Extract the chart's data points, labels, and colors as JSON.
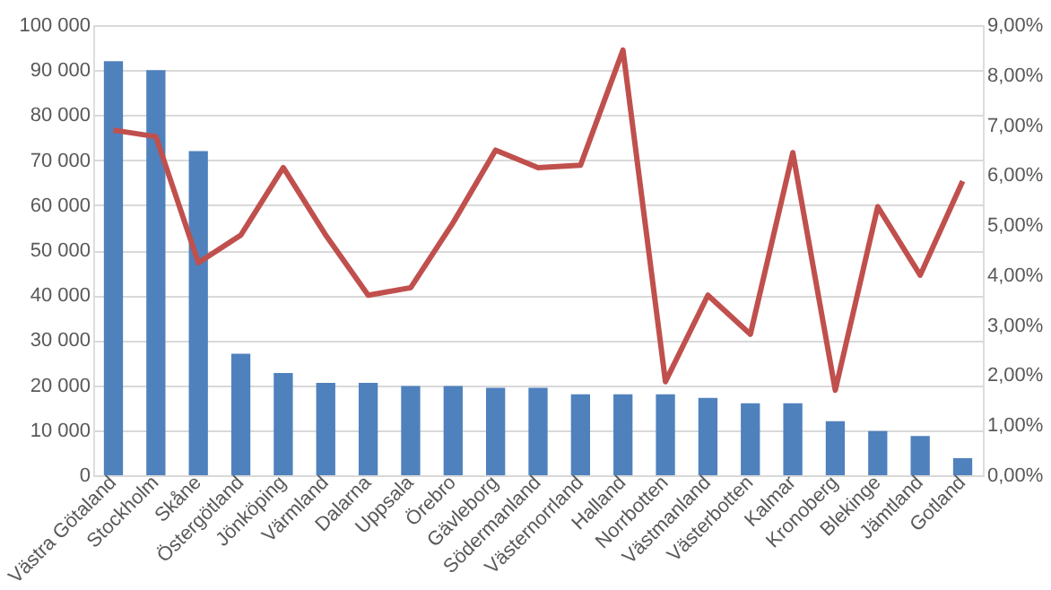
{
  "chart_data": {
    "type": "bar",
    "categories": [
      "Västra Götaland",
      "Stockholm",
      "Skåne",
      "Östergötland",
      "Jönköping",
      "Värmland",
      "Dalarna",
      "Uppsala",
      "Örebro",
      "Gävleborg",
      "Södermanland",
      "Västernorrland",
      "Halland",
      "Norrbotten",
      "Västmanland",
      "Västerbotten",
      "Kalmar",
      "Kronoberg",
      "Blekinge",
      "Jämtland",
      "Gotland"
    ],
    "series": [
      {
        "color": "#4f81bd",
        "values": [
          92000,
          90000,
          72000,
          27000,
          22700,
          20500,
          20500,
          19800,
          19800,
          19400,
          19400,
          18000,
          18000,
          18000,
          17200,
          16000,
          16000,
          12000,
          9800,
          8700,
          3800
        ]
      },
      {
        "type": "line",
        "axis": "y2",
        "color": "#c0504d",
        "values": [
          6.9,
          6.77,
          4.25,
          4.8,
          6.15,
          4.8,
          3.6,
          3.75,
          5.05,
          6.5,
          6.15,
          6.2,
          8.5,
          1.87,
          3.6,
          2.82,
          6.45,
          1.7,
          5.37,
          4.0,
          5.88
        ]
      }
    ],
    "ylim": [
      0,
      100000
    ],
    "yticks": [
      {
        "value": 0,
        "label": "0"
      },
      {
        "value": 10000,
        "label": "10 000"
      },
      {
        "value": 20000,
        "label": "20 000"
      },
      {
        "value": 30000,
        "label": "30 000"
      },
      {
        "value": 40000,
        "label": "40 000"
      },
      {
        "value": 50000,
        "label": "50 000"
      },
      {
        "value": 60000,
        "label": "60 000"
      },
      {
        "value": 70000,
        "label": "70 000"
      },
      {
        "value": 80000,
        "label": "80 000"
      },
      {
        "value": 90000,
        "label": "90 000"
      },
      {
        "value": 100000,
        "label": "100 000"
      }
    ],
    "y2lim": [
      0,
      9
    ],
    "y2ticks": [
      {
        "value": 0,
        "label": "0,00%"
      },
      {
        "value": 1,
        "label": "1,00%"
      },
      {
        "value": 2,
        "label": "2,00%"
      },
      {
        "value": 3,
        "label": "3,00%"
      },
      {
        "value": 4,
        "label": "4,00%"
      },
      {
        "value": 5,
        "label": "5,00%"
      },
      {
        "value": 6,
        "label": "6,00%"
      },
      {
        "value": 7,
        "label": "7,00%"
      },
      {
        "value": 8,
        "label": "8,00%"
      },
      {
        "value": 9,
        "label": "9,00%"
      }
    ],
    "grid": "y",
    "line_style": "solid",
    "marker": "none"
  }
}
